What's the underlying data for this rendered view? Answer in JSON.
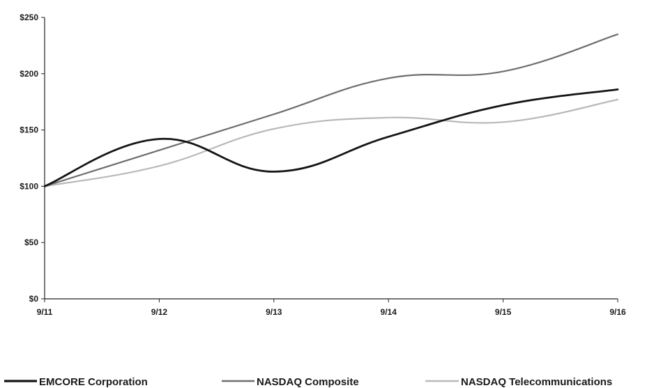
{
  "chart_data": {
    "type": "line",
    "categories": [
      "9/11",
      "9/12",
      "9/13",
      "9/14",
      "9/15",
      "9/16"
    ],
    "y_ticks": [
      "$0",
      "$50",
      "$100",
      "$150",
      "$200",
      "$250"
    ],
    "ylim": [
      0,
      250
    ],
    "series": [
      {
        "name": "EMCORE Corporation",
        "color": "#141414",
        "width": 2.8,
        "values": [
          100,
          142,
          113,
          144,
          172,
          186
        ]
      },
      {
        "name": "NASDAQ Composite",
        "color": "#6e6e6e",
        "width": 2.2,
        "values": [
          100,
          132,
          164,
          196,
          202,
          235
        ]
      },
      {
        "name": "NASDAQ Telecommunications",
        "color": "#b9b9b9",
        "width": 2.2,
        "values": [
          100,
          118,
          151,
          161,
          157,
          177
        ]
      }
    ],
    "legend_position": "bottom",
    "grid": false
  }
}
